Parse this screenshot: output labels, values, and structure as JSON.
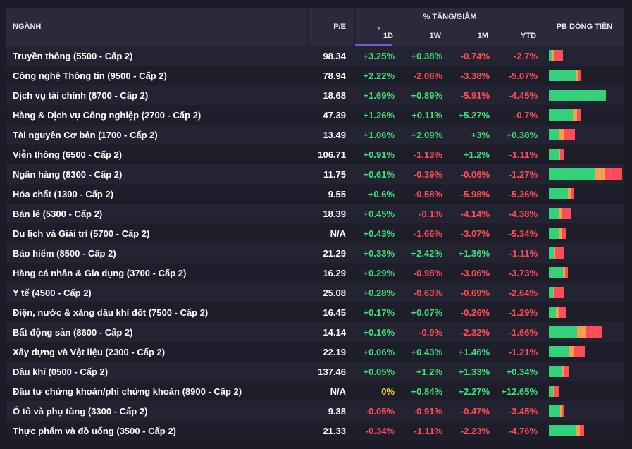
{
  "header": {
    "sector": "NGÀNH",
    "pe": "P/E",
    "change_group": "% TĂNG/GIẢM",
    "d1": "1D",
    "w1": "1W",
    "m1": "1M",
    "ytd": "YTD",
    "pb": "PB DÒNG TIỀN"
  },
  "rows": [
    {
      "name": "Truyền thông (5500 - Cấp 2)",
      "pe": "98.34",
      "d1": "+3.25%",
      "w1": "+0.38%",
      "m1": "-0.74%",
      "ytd": "-2.7%",
      "pb": [
        0.05,
        0.02,
        0.13
      ]
    },
    {
      "name": "Công nghệ Thông tin (9500 - Cấp 2)",
      "pe": "78.94",
      "d1": "+2.22%",
      "w1": "-2.06%",
      "m1": "-3.38%",
      "ytd": "-5.07%",
      "pb": [
        0.37,
        0.03,
        0.04
      ]
    },
    {
      "name": "Dịch vụ tài chính (8700 - Cấp 2)",
      "pe": "18.68",
      "d1": "+1.69%",
      "w1": "+0.89%",
      "m1": "-5.91%",
      "ytd": "-4.45%",
      "pb": [
        0.79,
        0.0,
        0.0
      ]
    },
    {
      "name": "Hàng & Dịch vụ Công nghiệp (2700 - Cấp 2)",
      "pe": "47.39",
      "d1": "+1.26%",
      "w1": "+0.11%",
      "m1": "+5.27%",
      "ytd": "-0.7%",
      "pb": [
        0.33,
        0.06,
        0.06
      ]
    },
    {
      "name": "Tài nguyên Cơ bản (1700 - Cấp 2)",
      "pe": "13.49",
      "d1": "+1.06%",
      "w1": "+2.09%",
      "m1": "+3%",
      "ytd": "+0.38%",
      "pb": [
        0.14,
        0.08,
        0.15
      ]
    },
    {
      "name": "Viễn thông (6500 - Cấp 2)",
      "pe": "106.71",
      "d1": "+0.91%",
      "w1": "-1.13%",
      "m1": "+1.2%",
      "ytd": "-1.11%",
      "pb": [
        0.15,
        0.01,
        0.05
      ]
    },
    {
      "name": "Ngân hàng (8300 - Cấp 2)",
      "pe": "11.75",
      "d1": "+0.61%",
      "w1": "-0.39%",
      "m1": "-0.06%",
      "ytd": "-1.27%",
      "pb": [
        0.63,
        0.14,
        0.24
      ]
    },
    {
      "name": "Hóa chất (1300 - Cấp 2)",
      "pe": "9.55",
      "d1": "+0.6%",
      "w1": "-0.58%",
      "m1": "-5.98%",
      "ytd": "-5.36%",
      "pb": [
        0.26,
        0.04,
        0.04
      ]
    },
    {
      "name": "Bán lẻ (5300 - Cấp 2)",
      "pe": "18.39",
      "d1": "+0.45%",
      "w1": "-0.1%",
      "m1": "-4.14%",
      "ytd": "-4.38%",
      "pb": [
        0.14,
        0.05,
        0.13
      ]
    },
    {
      "name": "Du lịch và Giải trí (5700 - Cấp 2)",
      "pe": "N/A",
      "d1": "+0.43%",
      "w1": "-1.66%",
      "m1": "-3.07%",
      "ytd": "-5.34%",
      "pb": [
        0.15,
        0.03,
        0.07
      ]
    },
    {
      "name": "Bảo hiểm (8500 - Cấp 2)",
      "pe": "21.29",
      "d1": "+0.33%",
      "w1": "+2.42%",
      "m1": "+1.36%",
      "ytd": "-1.11%",
      "pb": [
        0.07,
        0.02,
        0.13
      ]
    },
    {
      "name": "Hàng cá nhân & Gia dụng (3700 - Cấp 2)",
      "pe": "16.29",
      "d1": "+0.29%",
      "w1": "-0.98%",
      "m1": "-3.06%",
      "ytd": "-3.73%",
      "pb": [
        0.19,
        0.03,
        0.04
      ]
    },
    {
      "name": "Y tế (4500 - Cấp 2)",
      "pe": "25.08",
      "d1": "+0.28%",
      "w1": "-0.63%",
      "m1": "-0.69%",
      "ytd": "-2.64%",
      "pb": [
        0.06,
        0.02,
        0.14
      ]
    },
    {
      "name": "Điện, nước & xăng dầu khí đốt (7500 - Cấp 2)",
      "pe": "16.45",
      "d1": "+0.17%",
      "w1": "+0.07%",
      "m1": "-0.26%",
      "ytd": "-1.29%",
      "pb": [
        0.1,
        0.05,
        0.1
      ]
    },
    {
      "name": "Bất động sản (8600 - Cấp 2)",
      "pe": "14.14",
      "d1": "+0.16%",
      "w1": "-0.9%",
      "m1": "-2.32%",
      "ytd": "-1.66%",
      "pb": [
        0.39,
        0.13,
        0.21
      ]
    },
    {
      "name": "Xây dựng và Vật liệu (2300 - Cấp 2)",
      "pe": "22.19",
      "d1": "+0.06%",
      "w1": "+0.43%",
      "m1": "+1.46%",
      "ytd": "-1.21%",
      "pb": [
        0.28,
        0.07,
        0.16
      ]
    },
    {
      "name": "Dầu khí (0500 - Cấp 2)",
      "pe": "137.46",
      "d1": "+0.05%",
      "w1": "+1.2%",
      "m1": "+1.33%",
      "ytd": "+0.34%",
      "pb": [
        0.18,
        0.03,
        0.06
      ]
    },
    {
      "name": "Đầu tư chứng khoán/phi chứng khoán (8900 - Cấp 2)",
      "pe": "N/A",
      "d1": "0%",
      "w1": "+0.84%",
      "m1": "+2.27%",
      "ytd": "+12.65%",
      "pb": [
        0.06,
        0.02,
        0.07
      ]
    },
    {
      "name": "Ô tô và phụ tùng (3300 - Cấp 2)",
      "pe": "9.38",
      "d1": "-0.05%",
      "w1": "-0.91%",
      "m1": "-0.47%",
      "ytd": "-3.45%",
      "pb": [
        0.16,
        0.03,
        0.02
      ]
    },
    {
      "name": "Thực phẩm và đồ uống (3500 - Cấp 2)",
      "pe": "21.33",
      "d1": "-0.34%",
      "w1": "-1.11%",
      "m1": "-2.23%",
      "ytd": "-4.76%",
      "pb": [
        0.37,
        0.06,
        0.06
      ]
    }
  ],
  "colors": {
    "positive": "#3ee07a",
    "negative": "#ff4d57",
    "neutral": "#f5d914",
    "bar_green": "#33d17a",
    "bar_orange": "#f5a04a",
    "bar_red": "#ff4d57"
  }
}
